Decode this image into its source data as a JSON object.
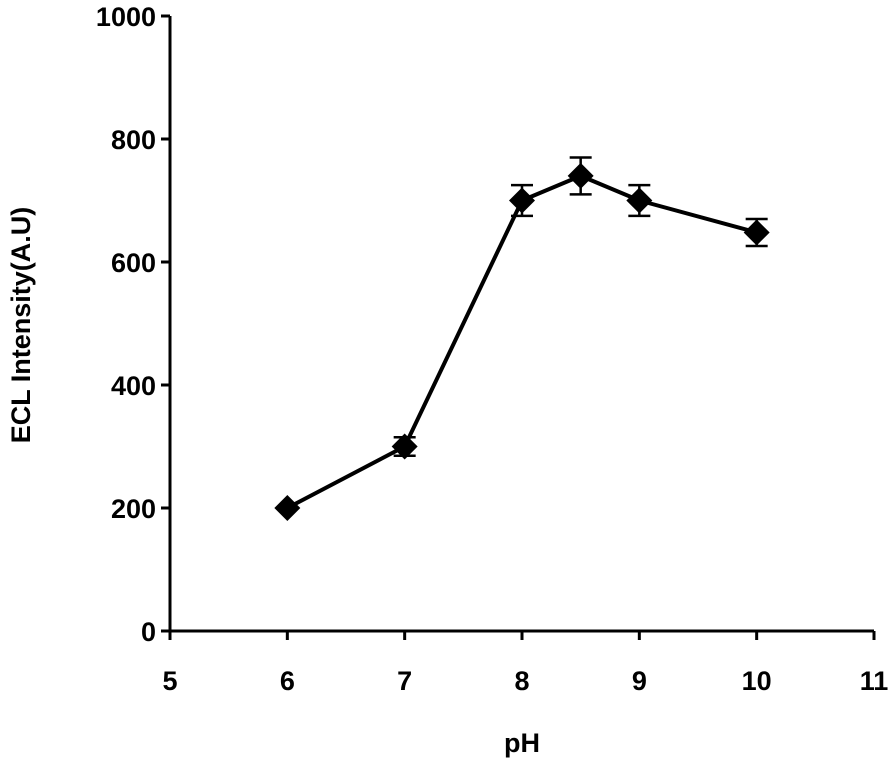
{
  "chart_data": {
    "type": "line",
    "title": "",
    "xlabel": "pH",
    "ylabel": "ECL Intensity(A.U)",
    "xlim": [
      5,
      11
    ],
    "ylim": [
      0,
      1000
    ],
    "xticks": [
      5,
      6,
      7,
      8,
      9,
      10,
      11
    ],
    "yticks": [
      0,
      200,
      400,
      600,
      800,
      1000
    ],
    "grid": false,
    "legend": "none",
    "series": [
      {
        "x": [
          6,
          7,
          8,
          8.5,
          9,
          10
        ],
        "y": [
          200,
          300,
          700,
          740,
          700,
          648
        ],
        "error": [
          0,
          15,
          25,
          30,
          25,
          22
        ],
        "marker": "diamond",
        "color": "#000000"
      }
    ]
  }
}
